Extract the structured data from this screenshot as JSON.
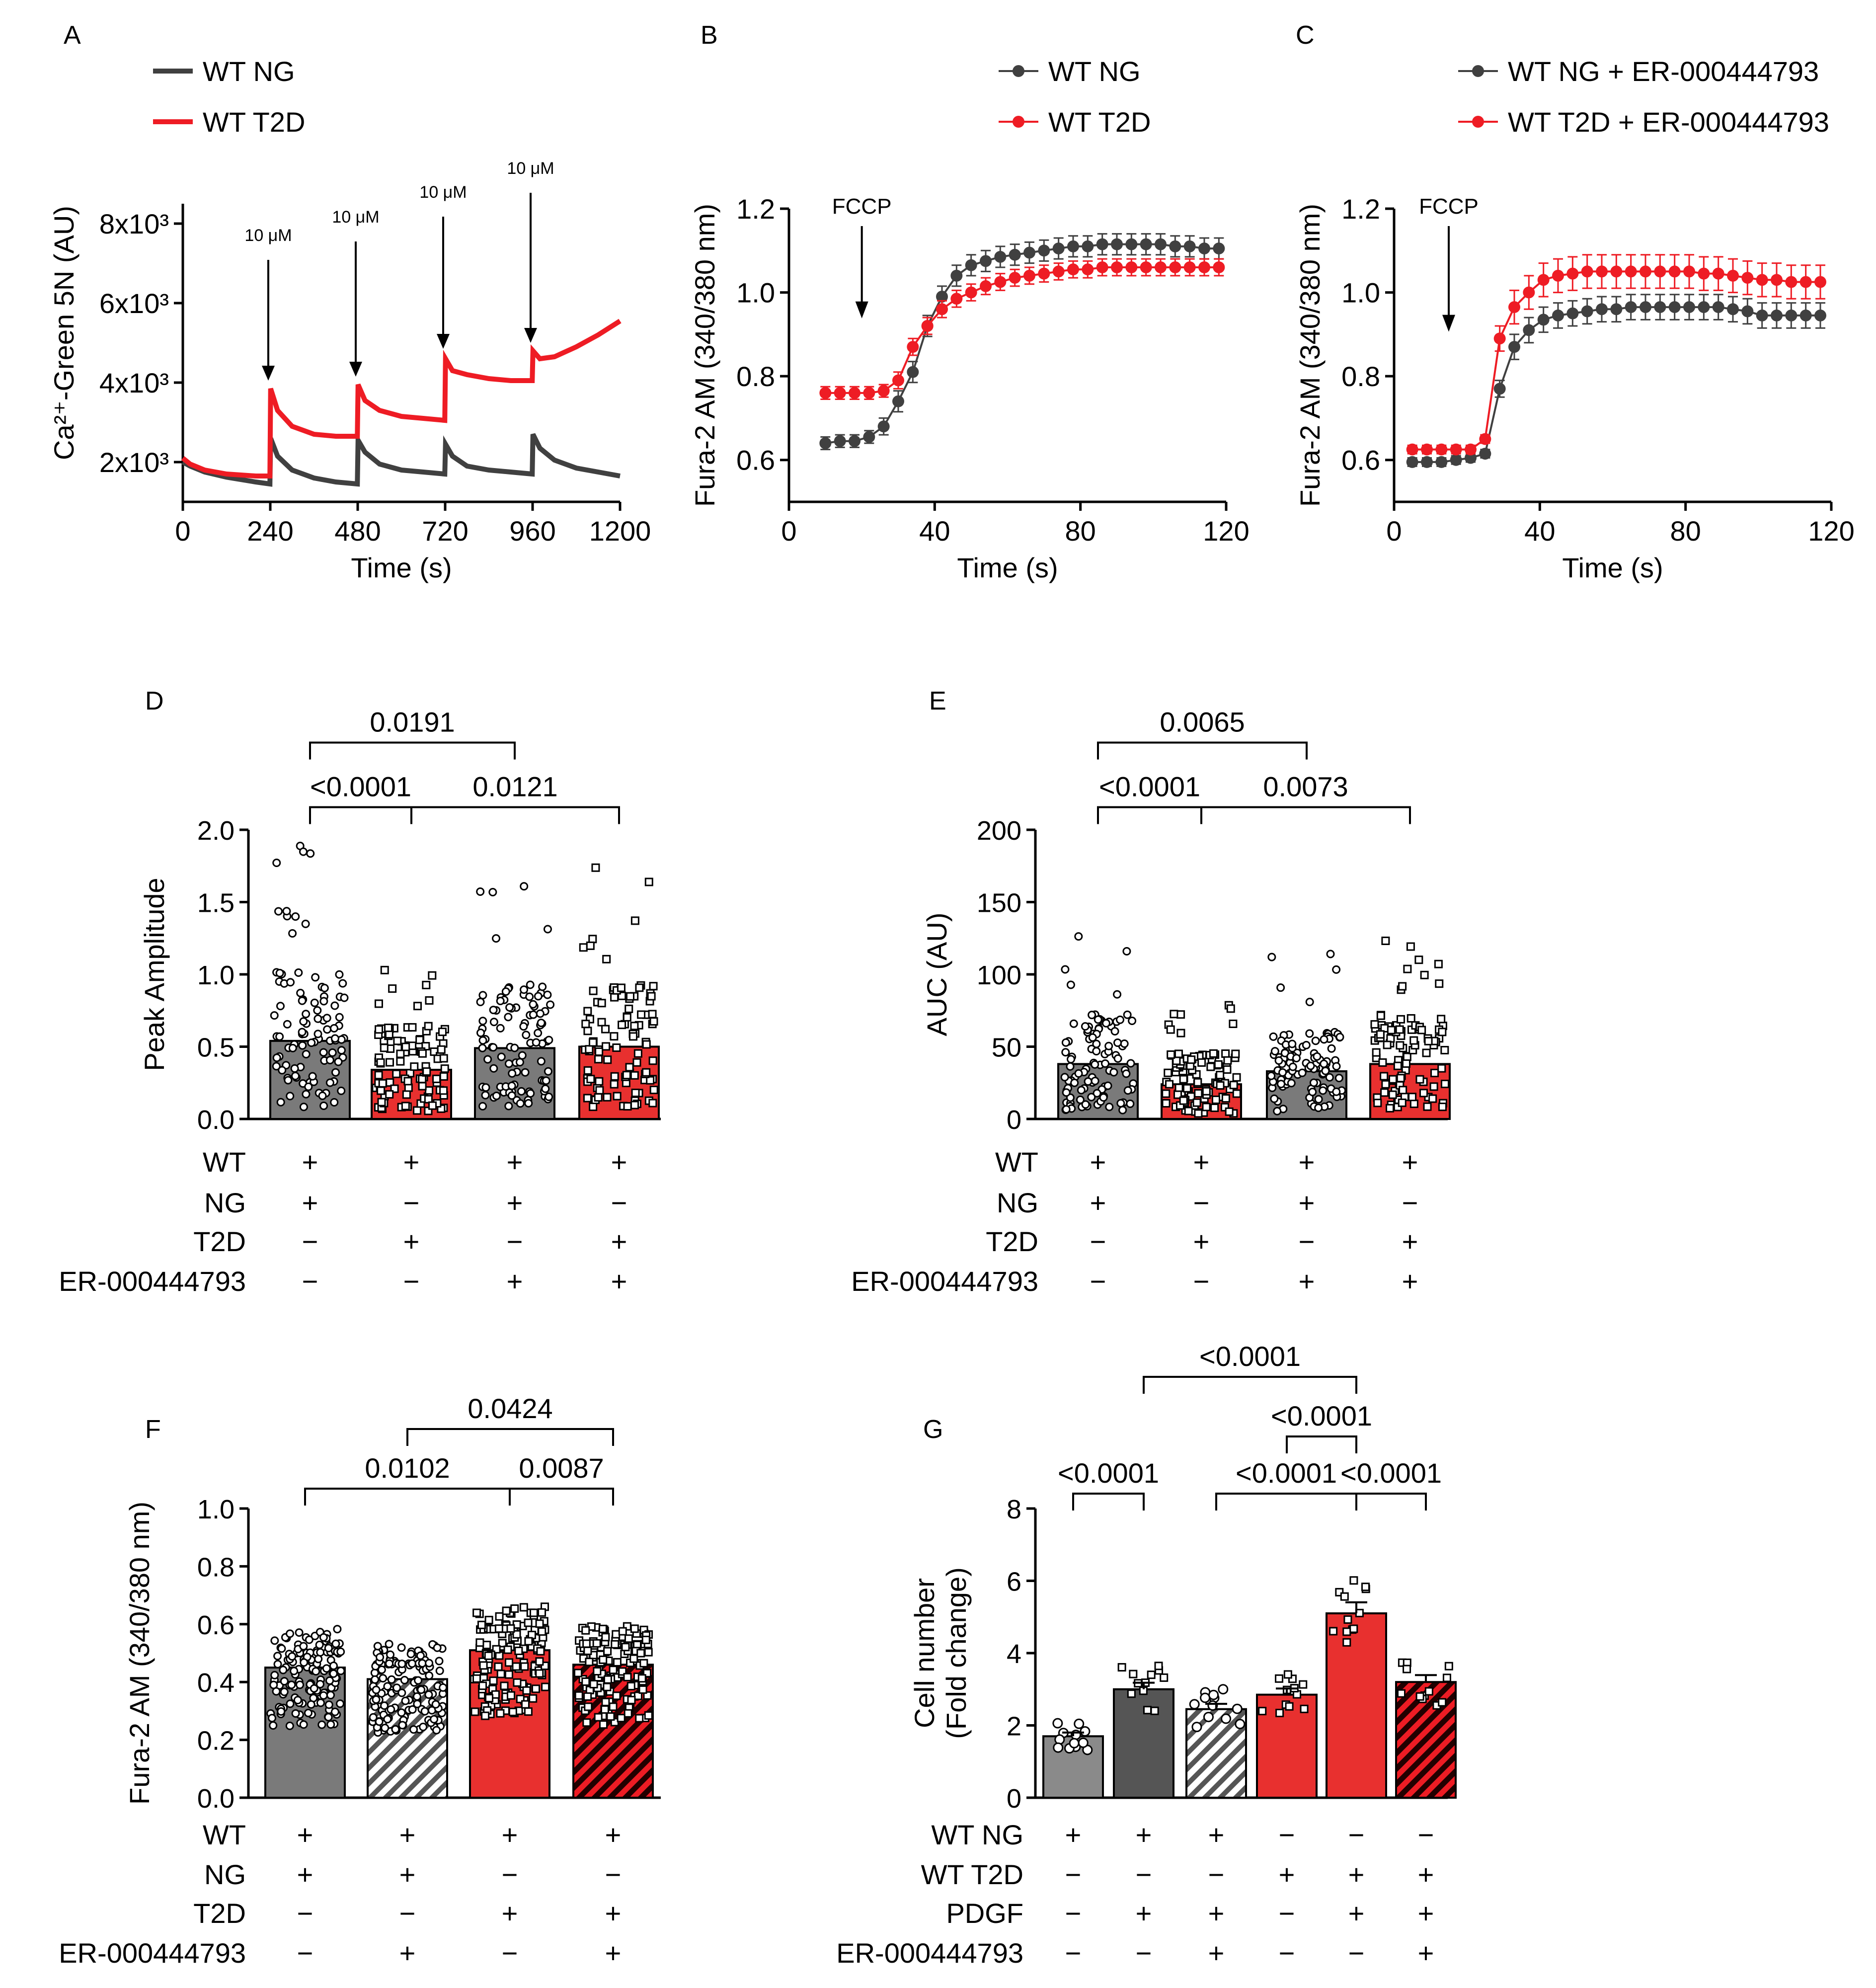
{
  "figure": {
    "panel_letters": [
      "A",
      "B",
      "C",
      "D",
      "E",
      "F",
      "G"
    ]
  },
  "colors": {
    "ng": "#404040",
    "t2d": "#ee1c24",
    "ng_bar": "#7a7a7a",
    "t2d_bar": "#e8302f",
    "hatch_ng": "#555555",
    "hatch_t2d": "#ed1c24"
  },
  "chart_data": [
    {
      "panel": "A",
      "type": "line",
      "ylabel_html": "Ca²⁺-Green 5N (AU)",
      "xlabel": "Time (s)",
      "xlim": [
        0,
        1200
      ],
      "xticks": [
        "0",
        "240",
        "480",
        "720",
        "960",
        "1200"
      ],
      "yticks": [
        "2x10³",
        "4x10³",
        "6x10³",
        "8x10³"
      ],
      "ytick_values": [
        2000,
        4000,
        6000,
        8000
      ],
      "ylim": [
        1000,
        8500
      ],
      "legend": [
        "WT NG",
        "WT T2D"
      ],
      "annotations": [
        {
          "text": "10 μM",
          "x": 240,
          "y_arrow_end": 3900
        },
        {
          "text": "10 μM",
          "x": 480,
          "y_arrow_end": 4000
        },
        {
          "text": "10 μM",
          "x": 720,
          "y_arrow_end": 4700
        },
        {
          "text": "10 μM",
          "x": 960,
          "y_arrow_end": 4850
        }
      ],
      "series": [
        {
          "name": "WT NG",
          "x": [
            0,
            20,
            60,
            120,
            200,
            239,
            241,
            260,
            300,
            360,
            420,
            479,
            481,
            500,
            540,
            600,
            660,
            719,
            721,
            740,
            780,
            840,
            900,
            959,
            961,
            980,
            1020,
            1080,
            1140,
            1200
          ],
          "y": [
            2000,
            1900,
            1750,
            1620,
            1500,
            1450,
            2600,
            2150,
            1800,
            1600,
            1500,
            1450,
            2550,
            2250,
            1950,
            1800,
            1750,
            1700,
            2450,
            2150,
            1900,
            1800,
            1750,
            1700,
            2700,
            2350,
            2050,
            1850,
            1750,
            1650
          ]
        },
        {
          "name": "WT T2D",
          "x": [
            0,
            20,
            60,
            120,
            200,
            239,
            241,
            260,
            300,
            360,
            420,
            479,
            481,
            500,
            540,
            600,
            660,
            719,
            721,
            740,
            780,
            840,
            900,
            959,
            961,
            980,
            1020,
            1080,
            1140,
            1200
          ],
          "y": [
            2100,
            1950,
            1800,
            1700,
            1650,
            1650,
            3850,
            3300,
            2900,
            2700,
            2650,
            2650,
            3950,
            3550,
            3300,
            3150,
            3100,
            3050,
            4600,
            4300,
            4200,
            4100,
            4050,
            4050,
            4800,
            4600,
            4650,
            4900,
            5200,
            5550
          ]
        }
      ]
    },
    {
      "panel": "B",
      "type": "line",
      "ylabel": "Fura-2 AM (340/380 nm)",
      "xlabel": "Time (s)",
      "xlim": [
        0,
        120
      ],
      "xticks": [
        "0",
        "40",
        "80",
        "120"
      ],
      "ylim": [
        0.5,
        1.2
      ],
      "yticks": [
        "0.6",
        "0.8",
        "1.0",
        "1.2"
      ],
      "legend": [
        "WT NG",
        "WT T2D"
      ],
      "annotations": [
        {
          "text": "FCCP",
          "x": 20
        }
      ],
      "series": [
        {
          "name": "WT NG",
          "x": [
            10,
            14,
            18,
            22,
            26,
            30,
            34,
            38,
            42,
            46,
            50,
            54,
            58,
            62,
            66,
            70,
            74,
            78,
            82,
            86,
            90,
            94,
            98,
            102,
            106,
            110,
            114,
            118
          ],
          "y": [
            0.64,
            0.645,
            0.645,
            0.655,
            0.68,
            0.74,
            0.81,
            0.92,
            0.99,
            1.04,
            1.065,
            1.075,
            1.085,
            1.09,
            1.095,
            1.1,
            1.105,
            1.11,
            1.11,
            1.115,
            1.115,
            1.115,
            1.115,
            1.115,
            1.11,
            1.11,
            1.105,
            1.105
          ],
          "err": [
            0.015,
            0.015,
            0.015,
            0.015,
            0.02,
            0.025,
            0.025,
            0.025,
            0.025,
            0.025,
            0.025,
            0.025,
            0.025,
            0.025,
            0.025,
            0.025,
            0.025,
            0.025,
            0.025,
            0.025,
            0.025,
            0.025,
            0.025,
            0.025,
            0.025,
            0.025,
            0.025,
            0.025
          ]
        },
        {
          "name": "WT T2D",
          "x": [
            10,
            14,
            18,
            22,
            26,
            30,
            34,
            38,
            42,
            46,
            50,
            54,
            58,
            62,
            66,
            70,
            74,
            78,
            82,
            86,
            90,
            94,
            98,
            102,
            106,
            110,
            114,
            118
          ],
          "y": [
            0.76,
            0.76,
            0.76,
            0.76,
            0.765,
            0.79,
            0.87,
            0.92,
            0.96,
            0.985,
            1.0,
            1.015,
            1.025,
            1.035,
            1.04,
            1.045,
            1.05,
            1.055,
            1.055,
            1.06,
            1.06,
            1.06,
            1.06,
            1.06,
            1.06,
            1.06,
            1.06,
            1.06
          ],
          "err": [
            0.015,
            0.015,
            0.015,
            0.015,
            0.015,
            0.02,
            0.02,
            0.02,
            0.02,
            0.02,
            0.02,
            0.02,
            0.02,
            0.02,
            0.02,
            0.02,
            0.02,
            0.02,
            0.02,
            0.02,
            0.02,
            0.02,
            0.02,
            0.02,
            0.02,
            0.02,
            0.02,
            0.02
          ]
        }
      ]
    },
    {
      "panel": "C",
      "type": "line",
      "ylabel": "Fura-2 AM (340/380 nm)",
      "xlabel": "Time (s)",
      "xlim": [
        0,
        120
      ],
      "xticks": [
        "0",
        "40",
        "80",
        "120"
      ],
      "ylim": [
        0.5,
        1.2
      ],
      "yticks": [
        "0.6",
        "0.8",
        "1.0",
        "1.2"
      ],
      "legend": [
        "WT NG + ER-000444793",
        "WT T2D + ER-000444793"
      ],
      "annotations": [
        {
          "text": "FCCP",
          "x": 15
        }
      ],
      "series": [
        {
          "name": "WT NG + ER-000444793",
          "x": [
            5,
            9,
            13,
            17,
            21,
            25,
            29,
            33,
            37,
            41,
            45,
            49,
            53,
            57,
            61,
            65,
            69,
            73,
            77,
            81,
            85,
            89,
            93,
            97,
            101,
            105,
            109,
            113,
            117
          ],
          "y": [
            0.595,
            0.595,
            0.595,
            0.6,
            0.605,
            0.615,
            0.77,
            0.87,
            0.91,
            0.935,
            0.945,
            0.95,
            0.955,
            0.96,
            0.96,
            0.965,
            0.965,
            0.965,
            0.965,
            0.965,
            0.965,
            0.965,
            0.96,
            0.955,
            0.945,
            0.945,
            0.945,
            0.945,
            0.945
          ],
          "err": [
            0.01,
            0.01,
            0.01,
            0.01,
            0.01,
            0.01,
            0.02,
            0.03,
            0.03,
            0.03,
            0.03,
            0.03,
            0.03,
            0.03,
            0.03,
            0.03,
            0.03,
            0.03,
            0.03,
            0.03,
            0.03,
            0.03,
            0.03,
            0.03,
            0.03,
            0.03,
            0.03,
            0.03,
            0.03
          ]
        },
        {
          "name": "WT T2D + ER-000444793",
          "x": [
            5,
            9,
            13,
            17,
            21,
            25,
            29,
            33,
            37,
            41,
            45,
            49,
            53,
            57,
            61,
            65,
            69,
            73,
            77,
            81,
            85,
            89,
            93,
            97,
            101,
            105,
            109,
            113,
            117
          ],
          "y": [
            0.625,
            0.625,
            0.625,
            0.625,
            0.625,
            0.65,
            0.89,
            0.965,
            1.0,
            1.03,
            1.04,
            1.045,
            1.05,
            1.05,
            1.05,
            1.05,
            1.05,
            1.05,
            1.05,
            1.05,
            1.045,
            1.045,
            1.04,
            1.035,
            1.03,
            1.03,
            1.025,
            1.025,
            1.025
          ],
          "err": [
            0.01,
            0.01,
            0.01,
            0.01,
            0.01,
            0.01,
            0.03,
            0.04,
            0.04,
            0.04,
            0.04,
            0.04,
            0.04,
            0.04,
            0.04,
            0.04,
            0.04,
            0.04,
            0.04,
            0.04,
            0.04,
            0.04,
            0.04,
            0.04,
            0.04,
            0.04,
            0.04,
            0.04,
            0.04
          ]
        }
      ]
    },
    {
      "panel": "D",
      "type": "bar",
      "ylabel": "Peak Amplitude",
      "ylim": [
        0,
        2.0
      ],
      "yticks": [
        "0.0",
        "0.5",
        "1.0",
        "1.5",
        "2.0"
      ],
      "values": [
        0.54,
        0.34,
        0.49,
        0.5
      ],
      "bar_styles": [
        "ng",
        "t2d",
        "ng",
        "t2d"
      ],
      "markers": [
        "circle",
        "square",
        "circle",
        "square"
      ],
      "row_labels": [
        "WT",
        "NG",
        "T2D",
        "ER-000444793"
      ],
      "signs": [
        [
          "+",
          "+",
          "+",
          "+"
        ],
        [
          "+",
          "−",
          "+",
          "−"
        ],
        [
          "−",
          "+",
          "−",
          "+"
        ],
        [
          "−",
          "−",
          "+",
          "+"
        ]
      ],
      "brackets": [
        {
          "from": 0,
          "to": 2,
          "label": "0.0191",
          "level": 2
        },
        {
          "from": 0,
          "to": 1,
          "label": "<0.0001",
          "level": 1
        },
        {
          "from": 1,
          "to": 3,
          "label": "0.0121",
          "level": 1
        }
      ]
    },
    {
      "panel": "E",
      "type": "bar",
      "ylabel": "AUC (AU)",
      "ylim": [
        0,
        200
      ],
      "yticks": [
        "0",
        "50",
        "100",
        "150",
        "200"
      ],
      "values": [
        38,
        24,
        33,
        38
      ],
      "bar_styles": [
        "ng",
        "t2d",
        "ng",
        "t2d"
      ],
      "markers": [
        "circle",
        "square",
        "circle",
        "square"
      ],
      "row_labels": [
        "WT",
        "NG",
        "T2D",
        "ER-000444793"
      ],
      "signs": [
        [
          "+",
          "+",
          "+",
          "+"
        ],
        [
          "+",
          "−",
          "+",
          "−"
        ],
        [
          "−",
          "+",
          "−",
          "+"
        ],
        [
          "−",
          "−",
          "+",
          "+"
        ]
      ],
      "brackets": [
        {
          "from": 0,
          "to": 2,
          "label": "0.0065",
          "level": 2
        },
        {
          "from": 0,
          "to": 1,
          "label": "<0.0001",
          "level": 1
        },
        {
          "from": 1,
          "to": 3,
          "label": "0.0073",
          "level": 1
        }
      ]
    },
    {
      "panel": "F",
      "type": "bar",
      "ylabel": "Fura-2 AM (340/380 nm)",
      "ylim": [
        0,
        1.0
      ],
      "yticks": [
        "0.0",
        "0.2",
        "0.4",
        "0.6",
        "0.8",
        "1.0"
      ],
      "values": [
        0.45,
        0.41,
        0.51,
        0.46
      ],
      "bar_styles": [
        "ng",
        "ng_hatch",
        "t2d",
        "t2d_hatch"
      ],
      "markers": [
        "circle",
        "circle",
        "square",
        "square"
      ],
      "row_labels": [
        "WT",
        "NG",
        "T2D",
        "ER-000444793"
      ],
      "signs": [
        [
          "+",
          "+",
          "+",
          "+"
        ],
        [
          "+",
          "+",
          "−",
          "−"
        ],
        [
          "−",
          "−",
          "+",
          "+"
        ],
        [
          "−",
          "+",
          "−",
          "+"
        ]
      ],
      "brackets": [
        {
          "from": 0,
          "to": 2,
          "label": "0.0102",
          "level": 1
        },
        {
          "from": 2,
          "to": 3,
          "label": "0.0087",
          "level": 1
        },
        {
          "from": 1,
          "to": 3,
          "label": "0.0424",
          "level": 2
        }
      ]
    },
    {
      "panel": "G",
      "type": "bar",
      "ylabel": "Cell number",
      "ylabel2": "(Fold change)",
      "ylim": [
        0,
        8
      ],
      "yticks": [
        "0",
        "2",
        "4",
        "6",
        "8"
      ],
      "values": [
        1.7,
        3.0,
        2.45,
        2.85,
        5.1,
        3.2
      ],
      "bar_styles": [
        "ng_light",
        "ng_dark",
        "ng_hatch",
        "t2d",
        "t2d",
        "t2d_hatch"
      ],
      "markers": [
        "circle",
        "square",
        "circle",
        "square",
        "square",
        "square"
      ],
      "row_labels": [
        "WT NG",
        "WT T2D",
        "PDGF",
        "ER-000444793"
      ],
      "signs": [
        [
          "+",
          "+",
          "+",
          "−",
          "−",
          "−"
        ],
        [
          "−",
          "−",
          "−",
          "+",
          "+",
          "+"
        ],
        [
          "−",
          "+",
          "+",
          "−",
          "+",
          "+"
        ],
        [
          "−",
          "−",
          "+",
          "−",
          "−",
          "+"
        ]
      ],
      "brackets": [
        {
          "from": 0,
          "to": 1,
          "label": "<0.0001",
          "level": 1
        },
        {
          "from": 2,
          "to": 4,
          "label": "<0.0001",
          "level": 1
        },
        {
          "from": 4,
          "to": 5,
          "label": "<0.0001",
          "level": 1
        },
        {
          "from": 3,
          "to": 4,
          "label": "<0.0001",
          "level": 2
        },
        {
          "from": 1,
          "to": 4,
          "label": "<0.0001",
          "level": 3
        }
      ]
    }
  ]
}
